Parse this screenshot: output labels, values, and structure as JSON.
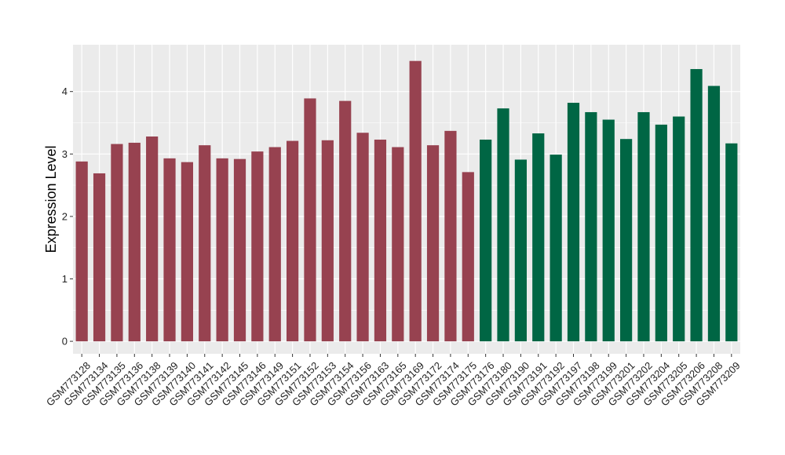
{
  "chart_data": {
    "type": "bar",
    "title": "",
    "xlabel": "",
    "ylabel": "Expression Level",
    "ylim": [
      -0.2,
      4.75
    ],
    "yticks": [
      0,
      1,
      2,
      3,
      4
    ],
    "grid": true,
    "legend": "none",
    "categories": [
      "GSM773128",
      "GSM773134",
      "GSM773135",
      "GSM773136",
      "GSM773138",
      "GSM773139",
      "GSM773140",
      "GSM773141",
      "GSM773142",
      "GSM773145",
      "GSM773146",
      "GSM773149",
      "GSM773151",
      "GSM773152",
      "GSM773153",
      "GSM773154",
      "GSM773156",
      "GSM773163",
      "GSM773165",
      "GSM773169",
      "GSM773172",
      "GSM773174",
      "GSM773175",
      "GSM773176",
      "GSM773180",
      "GSM773190",
      "GSM773191",
      "GSM773192",
      "GSM773197",
      "GSM773198",
      "GSM773199",
      "GSM773201",
      "GSM773202",
      "GSM773204",
      "GSM773205",
      "GSM773206",
      "GSM773208",
      "GSM773209"
    ],
    "values": [
      2.88,
      2.69,
      3.16,
      3.18,
      3.28,
      2.93,
      2.87,
      3.14,
      2.93,
      2.92,
      3.04,
      3.11,
      3.21,
      3.89,
      3.22,
      3.85,
      3.34,
      3.23,
      3.11,
      4.49,
      3.14,
      3.37,
      2.71,
      3.23,
      3.73,
      2.91,
      3.33,
      2.99,
      3.82,
      3.67,
      3.55,
      3.24,
      3.67,
      3.47,
      3.6,
      4.36,
      4.09,
      3.17
    ],
    "group_colors": [
      "#974250",
      "#974250",
      "#974250",
      "#974250",
      "#974250",
      "#974250",
      "#974250",
      "#974250",
      "#974250",
      "#974250",
      "#974250",
      "#974250",
      "#974250",
      "#974250",
      "#974250",
      "#974250",
      "#974250",
      "#974250",
      "#974250",
      "#974250",
      "#974250",
      "#974250",
      "#974250",
      "#006644",
      "#006644",
      "#006644",
      "#006644",
      "#006644",
      "#006644",
      "#006644",
      "#006644",
      "#006644",
      "#006644",
      "#006644",
      "#006644",
      "#006644",
      "#006644",
      "#006644"
    ],
    "panel_background": "#ebebeb",
    "grid_color": "#ffffff"
  }
}
